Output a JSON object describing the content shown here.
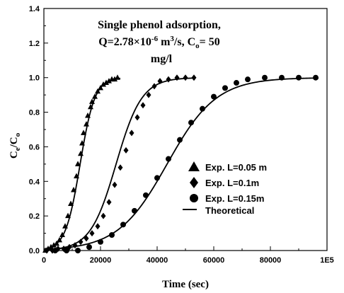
{
  "chart_data": {
    "type": "scatter",
    "title_lines": [
      "Single phenol adsorption,",
      "mg/l"
    ],
    "title_q_prefix": "Q=2.78×10",
    "title_q_exp": "-6",
    "title_q_unit": " m",
    "title_q_unit_exp": "3",
    "title_q_rest": "/s, C",
    "title_q_sub": "o",
    "title_q_end": "= 50",
    "xlabel": "Time (sec)",
    "ylabel_main": "C",
    "ylabel_sub1": "e",
    "ylabel_slash": "/C",
    "ylabel_sub2": "o",
    "xlim": [
      0,
      100000
    ],
    "ylim": [
      0,
      1.4
    ],
    "x_ticks": [
      0,
      20000,
      40000,
      60000,
      80000,
      100000
    ],
    "x_tick_labels": [
      "0",
      "20000",
      "40000",
      "60000",
      "80000",
      "1E5"
    ],
    "y_ticks": [
      0,
      0.2,
      0.4,
      0.6,
      0.8,
      1.0,
      1.2,
      1.4
    ],
    "y_tick_labels": [
      "0.0",
      "0.2",
      "0.4",
      "0.6",
      "0.8",
      "1.0",
      "1.2",
      "1.4"
    ],
    "legend_position": "center-right",
    "series": [
      {
        "name": "Exp. L=0.05 m",
        "marker": "triangle",
        "points": [
          [
            500,
            0.0
          ],
          [
            1500,
            0.01
          ],
          [
            2500,
            0.02
          ],
          [
            3500,
            0.03
          ],
          [
            4500,
            0.04
          ],
          [
            5500,
            0.06
          ],
          [
            6500,
            0.09
          ],
          [
            7500,
            0.14
          ],
          [
            8500,
            0.2
          ],
          [
            9500,
            0.27
          ],
          [
            10500,
            0.35
          ],
          [
            11500,
            0.43
          ],
          [
            12000,
            0.5
          ],
          [
            13000,
            0.56
          ],
          [
            13500,
            0.62
          ],
          [
            14000,
            0.68
          ],
          [
            15000,
            0.73
          ],
          [
            15500,
            0.78
          ],
          [
            16500,
            0.83
          ],
          [
            17000,
            0.86
          ],
          [
            18000,
            0.89
          ],
          [
            19000,
            0.92
          ],
          [
            20000,
            0.94
          ],
          [
            21000,
            0.96
          ],
          [
            22000,
            0.97
          ],
          [
            23000,
            0.98
          ],
          [
            24000,
            0.99
          ],
          [
            25000,
            0.99
          ],
          [
            26000,
            1.0
          ]
        ]
      },
      {
        "name": "Exp. L=0.1m",
        "marker": "diamond",
        "points": [
          [
            1000,
            0.0
          ],
          [
            3000,
            0.0
          ],
          [
            5000,
            0.01
          ],
          [
            7000,
            0.01
          ],
          [
            9000,
            0.02
          ],
          [
            11000,
            0.03
          ],
          [
            13000,
            0.05
          ],
          [
            15000,
            0.07
          ],
          [
            17000,
            0.1
          ],
          [
            19000,
            0.14
          ],
          [
            21000,
            0.2
          ],
          [
            23000,
            0.28
          ],
          [
            25000,
            0.38
          ],
          [
            27000,
            0.48
          ],
          [
            29000,
            0.58
          ],
          [
            31000,
            0.68
          ],
          [
            33000,
            0.77
          ],
          [
            35000,
            0.84
          ],
          [
            37000,
            0.9
          ],
          [
            39000,
            0.95
          ],
          [
            41000,
            0.98
          ],
          [
            44000,
            0.99
          ],
          [
            47000,
            1.0
          ],
          [
            50000,
            1.0
          ],
          [
            53000,
            1.0
          ]
        ]
      },
      {
        "name": "Exp. L=0.15m",
        "marker": "circle",
        "points": [
          [
            4000,
            0.0
          ],
          [
            8000,
            0.0
          ],
          [
            12000,
            0.0
          ],
          [
            16000,
            0.02
          ],
          [
            20000,
            0.05
          ],
          [
            24000,
            0.09
          ],
          [
            28000,
            0.15
          ],
          [
            32000,
            0.23
          ],
          [
            36000,
            0.32
          ],
          [
            40000,
            0.42
          ],
          [
            44000,
            0.53
          ],
          [
            48000,
            0.64
          ],
          [
            52000,
            0.74
          ],
          [
            56000,
            0.82
          ],
          [
            60000,
            0.89
          ],
          [
            64000,
            0.94
          ],
          [
            68000,
            0.97
          ],
          [
            72000,
            0.99
          ],
          [
            78000,
            1.0
          ],
          [
            84000,
            1.0
          ],
          [
            90000,
            1.0
          ],
          [
            96000,
            1.0
          ]
        ]
      },
      {
        "name": "Theoretical",
        "marker": "line",
        "curves": [
          {
            "t50": 12800,
            "k": 0.000385,
            "xmax": 27000
          },
          {
            "t50": 25500,
            "k": 0.00022,
            "xmax": 53000
          },
          {
            "t50": 43500,
            "k": 0.000115,
            "xmax": 97000
          }
        ]
      }
    ]
  }
}
